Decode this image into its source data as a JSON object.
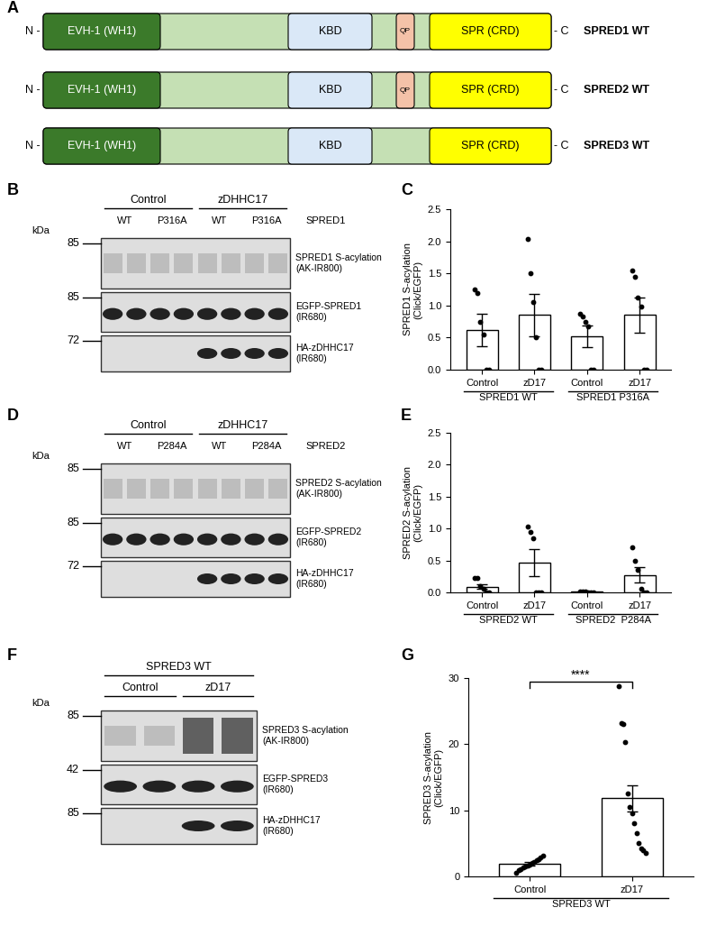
{
  "panel_labels": [
    "A",
    "B",
    "C",
    "D",
    "E",
    "F",
    "G"
  ],
  "domain_diagram": {
    "n_label": "N -",
    "c_label": "- C",
    "backbone_color": "#c5e0b4",
    "domains": [
      {
        "name": "EVH-1 (WH1)",
        "color": "#3b7a2a"
      },
      {
        "name": "KBD",
        "color": "#dae8f7"
      },
      {
        "name": "QP",
        "color": "#f4c2a8"
      },
      {
        "name": "SPR (CRD)",
        "color": "#ffff00"
      }
    ],
    "proteins": [
      {
        "name": "SPRED1 WT",
        "domains": [
          "EVH-1 (WH1)",
          "KBD",
          "QP",
          "SPR (CRD)"
        ]
      },
      {
        "name": "SPRED2 WT",
        "domains": [
          "EVH-1 (WH1)",
          "KBD",
          "QP",
          "SPR (CRD)"
        ]
      },
      {
        "name": "SPRED3 WT",
        "domains": [
          "EVH-1 (WH1)",
          "KBD",
          "SPR (CRD)"
        ]
      }
    ]
  },
  "blots": [
    {
      "groups": [
        "Control",
        "zDHHC17"
      ],
      "lanes": [
        "WT",
        "P316A",
        "WT",
        "P316A"
      ],
      "construct": "SPRED1",
      "kda_label": "kDa",
      "rows": [
        {
          "label": "SPRED1 S-acylation\n(AK-IR800)",
          "marker": 85
        },
        {
          "label": "EGFP-SPRED1\n(IR680)",
          "marker": 85
        },
        {
          "label": "HA-zDHHC17\n(IR680)",
          "marker": 72
        }
      ]
    },
    {
      "groups": [
        "Control",
        "zDHHC17"
      ],
      "lanes": [
        "WT",
        "P284A",
        "WT",
        "P284A"
      ],
      "construct": "SPRED2",
      "kda_label": "kDa",
      "rows": [
        {
          "label": "SPRED2 S-acylation\n(AK-IR800)",
          "marker": 85
        },
        {
          "label": "EGFP-SPRED2\n(IR680)",
          "marker": 85
        },
        {
          "label": "HA-zDHHC17\n(IR680)",
          "marker": 72
        }
      ]
    },
    {
      "header": "SPRED3 WT",
      "groups": [
        "Control",
        "zD17"
      ],
      "kda_label": "kDa",
      "rows": [
        {
          "label": "SPRED3 S-acylation\n(AK-IR800)",
          "marker": 85
        },
        {
          "label": "EGFP-SPRED3\n(IR680)",
          "marker": 42
        },
        {
          "label": "HA-zDHHC17\n(IR680)",
          "marker": 85
        }
      ]
    }
  ],
  "chart_data": [
    {
      "type": "bar",
      "categories": [
        "Control",
        "zD17",
        "Control",
        "zD17"
      ],
      "group_labels": [
        "SPRED1 WT",
        "SPRED1 P316A"
      ],
      "ylabel": "SPRED1 S-acylation\n(Click/EGFP)",
      "values": [
        0.62,
        0.85,
        0.52,
        0.85
      ],
      "errors": [
        0.25,
        0.33,
        0.17,
        0.28
      ],
      "points": [
        [
          1.25,
          1.2,
          0.75,
          0.55,
          0,
          0
        ],
        [
          2.03,
          1.5,
          1.05,
          0.5,
          0,
          0
        ],
        [
          0.87,
          0.83,
          0.75,
          0.68,
          0,
          0
        ],
        [
          1.55,
          1.45,
          1.12,
          0.98,
          0,
          0
        ]
      ],
      "color": "#ffffff",
      "ylim": [
        0,
        2.5
      ],
      "yticks": [
        {
          "value": 0,
          "label": "0.0"
        },
        {
          "value": 0.5,
          "label": "0.5"
        },
        {
          "value": 1,
          "label": "1.0"
        },
        {
          "value": 1.5,
          "label": "1.5"
        },
        {
          "value": 2,
          "label": "2.0"
        },
        {
          "value": 2.5,
          "label": "2.5"
        }
      ]
    },
    {
      "type": "bar",
      "categories": [
        "Control",
        "zD17",
        "Control",
        "zD17"
      ],
      "group_labels": [
        "SPRED2 WT",
        "SPRED2  P284A"
      ],
      "ylabel": "SPRED2 S-acylation\n(Click/EGFP)",
      "values": [
        0.09,
        0.47,
        0.01,
        0.27
      ],
      "errors": [
        0.04,
        0.21,
        0.005,
        0.12
      ],
      "points": [
        [
          0.22,
          0.22,
          0.1,
          0.05,
          0,
          0
        ],
        [
          1.03,
          0.95,
          0.85,
          0,
          0,
          0
        ],
        [
          0.02,
          0.01,
          0.01,
          0,
          0,
          0
        ],
        [
          0.7,
          0.5,
          0.35,
          0.05,
          0,
          0
        ]
      ],
      "color": "#ffffff",
      "ylim": [
        0,
        2.5
      ],
      "yticks": [
        {
          "value": 0,
          "label": "0.0"
        },
        {
          "value": 0.5,
          "label": "0.5"
        },
        {
          "value": 1,
          "label": "1.0"
        },
        {
          "value": 1.5,
          "label": "1.5"
        },
        {
          "value": 2,
          "label": "2.0"
        },
        {
          "value": 2.5,
          "label": "2.5"
        }
      ]
    },
    {
      "type": "bar",
      "categories": [
        "Control",
        "zD17"
      ],
      "group_labels": [
        "SPRED3 WT"
      ],
      "ylabel": "SPRED3 S-acylation\n(Click/EGFP)",
      "values": [
        1.9,
        11.8
      ],
      "errors": [
        0.3,
        2.0
      ],
      "points": [
        [
          0.6,
          0.9,
          1.1,
          1.3,
          1.5,
          1.6,
          1.8,
          2.0,
          2.2,
          2.4,
          2.6,
          2.9,
          3.2
        ],
        [
          28.8,
          23.2,
          23.0,
          20.3,
          12.5,
          10.5,
          9.5,
          8.0,
          6.5,
          5.0,
          4.2,
          3.9,
          3.6
        ]
      ],
      "color": "#ffffff",
      "ylim": [
        0,
        30
      ],
      "yticks": [
        0,
        10,
        20,
        30
      ],
      "annotations": [
        {
          "text": "****",
          "between": [
            0,
            1
          ]
        }
      ]
    }
  ]
}
